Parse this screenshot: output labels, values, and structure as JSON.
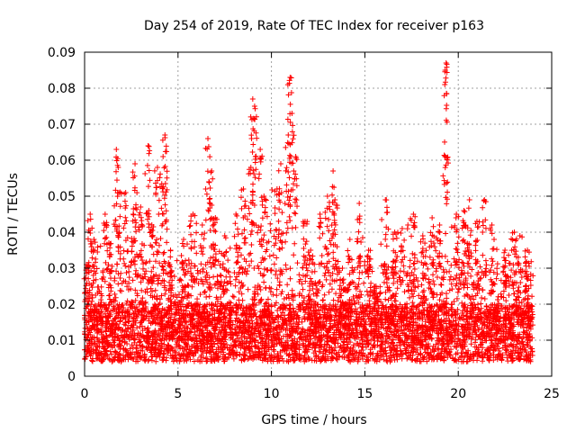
{
  "chart_data": {
    "type": "scatter",
    "title": "Day 254 of 2019, Rate Of TEC Index for receiver p163",
    "xlabel": "GPS time / hours",
    "ylabel": "ROTI / TECUs",
    "xlim": [
      0,
      25
    ],
    "ylim": [
      0,
      0.09
    ],
    "xticks": [
      0,
      5,
      10,
      15,
      20,
      25
    ],
    "xtick_labels": [
      "0",
      "5",
      "10",
      "15",
      "20",
      "25"
    ],
    "yticks": [
      0,
      0.01,
      0.02,
      0.03,
      0.04,
      0.05,
      0.06,
      0.07,
      0.08,
      0.09
    ],
    "ytick_labels": [
      "0",
      "0.01",
      "0.02",
      "0.03",
      "0.04",
      "0.05",
      "0.06",
      "0.07",
      "0.08",
      "0.09"
    ],
    "grid": true,
    "marker": "+",
    "marker_color": "#ff0000",
    "data_range_x": [
      0,
      24
    ],
    "series": [
      {
        "name": "ROTI",
        "points_note": "dense scatter; representative points listed, remaining density generated around these",
        "x": [
          0.1,
          0.3,
          0.5,
          1.1,
          1.3,
          1.7,
          1.8,
          2.2,
          2.6,
          2.7,
          3.0,
          3.4,
          3.6,
          3.9,
          4.2,
          4.3,
          4.6,
          5.3,
          5.8,
          6.3,
          6.6,
          6.8,
          7.0,
          7.5,
          8.1,
          8.5,
          8.9,
          9.0,
          9.1,
          9.4,
          9.6,
          10.3,
          10.5,
          10.9,
          11.0,
          11.1,
          11.3,
          11.8,
          12.1,
          12.6,
          13.0,
          13.3,
          13.4,
          13.8,
          14.2,
          14.7,
          15.2,
          15.6,
          16.1,
          16.6,
          17.0,
          17.6,
          18.1,
          18.6,
          19.0,
          19.3,
          19.35,
          19.9,
          20.3,
          20.6,
          21.0,
          21.4,
          21.8,
          22.5,
          23.0,
          23.3,
          23.7
        ],
        "y": [
          0.031,
          0.045,
          0.038,
          0.045,
          0.037,
          0.063,
          0.058,
          0.051,
          0.045,
          0.059,
          0.047,
          0.064,
          0.042,
          0.058,
          0.061,
          0.067,
          0.035,
          0.038,
          0.045,
          0.042,
          0.066,
          0.057,
          0.044,
          0.039,
          0.045,
          0.052,
          0.058,
          0.077,
          0.075,
          0.063,
          0.05,
          0.052,
          0.059,
          0.067,
          0.083,
          0.073,
          0.061,
          0.043,
          0.035,
          0.045,
          0.05,
          0.057,
          0.049,
          0.03,
          0.038,
          0.048,
          0.035,
          0.025,
          0.049,
          0.04,
          0.041,
          0.045,
          0.039,
          0.044,
          0.042,
          0.085,
          0.087,
          0.045,
          0.046,
          0.049,
          0.043,
          0.049,
          0.042,
          0.035,
          0.04,
          0.039,
          0.035
        ]
      }
    ]
  }
}
